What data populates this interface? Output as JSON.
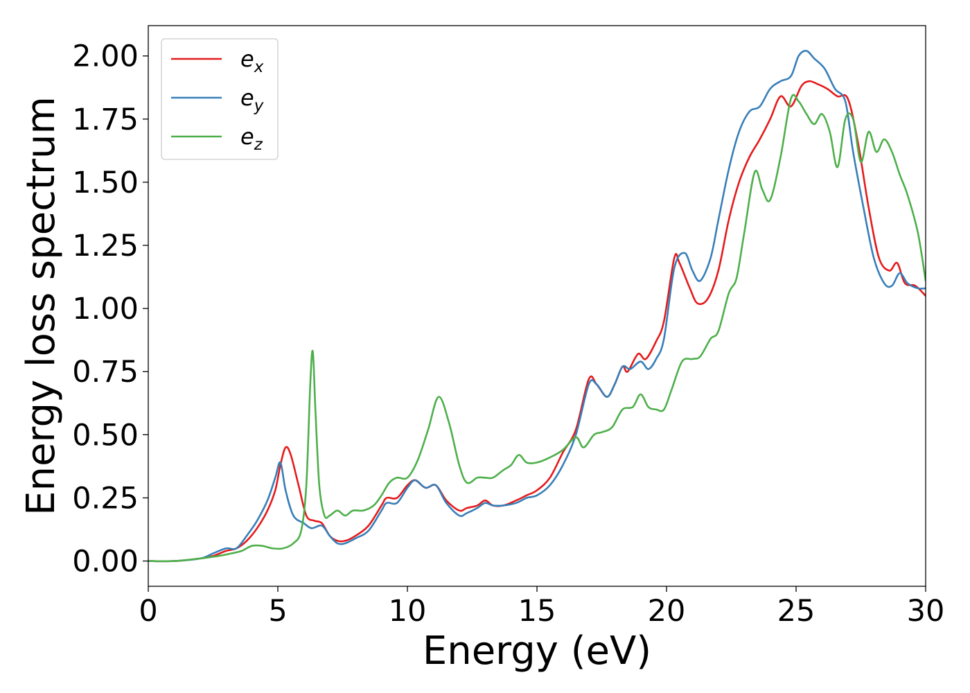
{
  "chart_data": {
    "type": "line",
    "xlabel": "Energy (eV)",
    "ylabel": "Energy loss spectrum",
    "xlim": [
      0,
      30
    ],
    "ylim": [
      -0.1,
      2.12
    ],
    "xticks": [
      0,
      5,
      10,
      15,
      20,
      25,
      30
    ],
    "yticks": [
      0.0,
      0.25,
      0.5,
      0.75,
      1.0,
      1.25,
      1.5,
      1.75,
      2.0
    ],
    "xtick_labels": [
      "0",
      "5",
      "10",
      "15",
      "20",
      "25",
      "30"
    ],
    "ytick_labels": [
      "0.00",
      "0.25",
      "0.50",
      "0.75",
      "1.00",
      "1.25",
      "1.50",
      "1.75",
      "2.00"
    ],
    "grid": false,
    "legend_position": "top-left",
    "series": [
      {
        "name": "e",
        "subscript": "x",
        "color": "#e41a1c",
        "x": [
          0,
          1,
          2,
          2.5,
          3,
          3.4,
          3.8,
          4.2,
          4.6,
          4.9,
          5.1,
          5.3,
          5.5,
          5.8,
          6.1,
          6.4,
          6.7,
          7.0,
          7.3,
          7.6,
          8.0,
          8.5,
          9.0,
          9.2,
          9.6,
          10.0,
          10.3,
          10.7,
          11.1,
          11.5,
          12.0,
          12.3,
          12.7,
          13.0,
          13.3,
          13.7,
          14.2,
          14.6,
          15.0,
          15.5,
          16.0,
          16.5,
          17.0,
          17.3,
          17.7,
          18.0,
          18.3,
          18.5,
          18.9,
          19.2,
          19.6,
          19.9,
          20.3,
          20.5,
          20.9,
          21.2,
          21.6,
          22.0,
          22.4,
          22.8,
          23.2,
          23.6,
          24.0,
          24.4,
          24.8,
          25.2,
          25.5,
          25.8,
          26.2,
          26.6,
          27.0,
          27.4,
          27.8,
          28.2,
          28.6,
          28.9,
          29.2,
          29.6,
          30.0
        ],
        "y": [
          0.0,
          0.0,
          0.01,
          0.02,
          0.04,
          0.05,
          0.08,
          0.13,
          0.2,
          0.28,
          0.38,
          0.45,
          0.42,
          0.3,
          0.18,
          0.16,
          0.15,
          0.1,
          0.08,
          0.08,
          0.1,
          0.14,
          0.22,
          0.25,
          0.25,
          0.3,
          0.32,
          0.29,
          0.3,
          0.24,
          0.2,
          0.21,
          0.22,
          0.24,
          0.22,
          0.22,
          0.24,
          0.26,
          0.28,
          0.33,
          0.43,
          0.52,
          0.72,
          0.7,
          0.65,
          0.7,
          0.77,
          0.75,
          0.82,
          0.8,
          0.87,
          0.95,
          1.2,
          1.18,
          1.08,
          1.02,
          1.04,
          1.15,
          1.35,
          1.5,
          1.6,
          1.67,
          1.75,
          1.84,
          1.8,
          1.88,
          1.9,
          1.89,
          1.87,
          1.84,
          1.83,
          1.65,
          1.4,
          1.2,
          1.15,
          1.18,
          1.1,
          1.09,
          1.05
        ]
      },
      {
        "name": "e",
        "subscript": "y",
        "color": "#377eb8",
        "x": [
          0,
          1,
          2,
          2.5,
          3,
          3.4,
          3.8,
          4.2,
          4.6,
          4.9,
          5.1,
          5.3,
          5.6,
          6.0,
          6.3,
          6.7,
          7.0,
          7.3,
          7.6,
          8.0,
          8.5,
          9.0,
          9.2,
          9.6,
          10.0,
          10.3,
          10.7,
          11.1,
          11.5,
          12.0,
          12.3,
          12.7,
          13.0,
          13.3,
          13.7,
          14.2,
          14.6,
          15.0,
          15.5,
          16.0,
          16.5,
          17.0,
          17.3,
          17.7,
          18.0,
          18.3,
          18.6,
          19.0,
          19.3,
          19.6,
          19.9,
          20.3,
          20.7,
          21.0,
          21.3,
          21.7,
          22.0,
          22.4,
          22.8,
          23.2,
          23.6,
          24.0,
          24.4,
          24.8,
          25.1,
          25.4,
          25.7,
          26.1,
          26.5,
          26.9,
          27.2,
          27.6,
          28.0,
          28.4,
          28.7,
          29.0,
          29.3,
          29.7,
          30.0
        ],
        "y": [
          0.0,
          0.0,
          0.01,
          0.03,
          0.05,
          0.05,
          0.1,
          0.16,
          0.24,
          0.33,
          0.39,
          0.28,
          0.18,
          0.15,
          0.13,
          0.14,
          0.1,
          0.07,
          0.07,
          0.09,
          0.12,
          0.2,
          0.23,
          0.23,
          0.29,
          0.32,
          0.29,
          0.3,
          0.23,
          0.18,
          0.19,
          0.21,
          0.23,
          0.22,
          0.22,
          0.23,
          0.25,
          0.26,
          0.3,
          0.38,
          0.5,
          0.7,
          0.7,
          0.65,
          0.7,
          0.77,
          0.76,
          0.79,
          0.76,
          0.8,
          0.88,
          1.16,
          1.22,
          1.15,
          1.11,
          1.2,
          1.35,
          1.55,
          1.7,
          1.78,
          1.8,
          1.87,
          1.9,
          1.92,
          2.0,
          2.02,
          1.99,
          1.95,
          1.87,
          1.82,
          1.62,
          1.4,
          1.2,
          1.1,
          1.09,
          1.14,
          1.1,
          1.08,
          1.08
        ]
      },
      {
        "name": "e",
        "subscript": "z",
        "color": "#4daf4a",
        "x": [
          0,
          1,
          2,
          2.7,
          3.2,
          3.6,
          4.0,
          4.4,
          4.8,
          5.2,
          5.6,
          5.9,
          6.1,
          6.25,
          6.35,
          6.45,
          6.6,
          6.8,
          7.0,
          7.3,
          7.6,
          7.9,
          8.3,
          8.7,
          9.0,
          9.3,
          9.6,
          10.0,
          10.4,
          10.8,
          11.2,
          11.6,
          12.0,
          12.3,
          12.7,
          13.0,
          13.3,
          13.7,
          14.0,
          14.3,
          14.6,
          15.0,
          15.5,
          16.0,
          16.5,
          16.8,
          17.2,
          17.5,
          17.9,
          18.3,
          18.7,
          19.0,
          19.3,
          19.6,
          19.9,
          20.2,
          20.6,
          21.0,
          21.3,
          21.7,
          22.0,
          22.4,
          22.7,
          23.0,
          23.4,
          23.7,
          24.0,
          24.4,
          24.8,
          25.1,
          25.4,
          25.7,
          26.0,
          26.3,
          26.6,
          26.9,
          27.2,
          27.5,
          27.8,
          28.1,
          28.4,
          28.7,
          29.0,
          29.3,
          29.7,
          30.0
        ],
        "y": [
          0.0,
          0.0,
          0.01,
          0.02,
          0.03,
          0.04,
          0.06,
          0.06,
          0.05,
          0.05,
          0.07,
          0.12,
          0.3,
          0.7,
          0.83,
          0.6,
          0.3,
          0.18,
          0.18,
          0.2,
          0.18,
          0.2,
          0.2,
          0.22,
          0.26,
          0.31,
          0.33,
          0.33,
          0.4,
          0.52,
          0.65,
          0.55,
          0.38,
          0.31,
          0.33,
          0.33,
          0.33,
          0.36,
          0.38,
          0.42,
          0.39,
          0.39,
          0.41,
          0.44,
          0.49,
          0.45,
          0.5,
          0.51,
          0.53,
          0.6,
          0.61,
          0.66,
          0.61,
          0.6,
          0.6,
          0.68,
          0.79,
          0.8,
          0.81,
          0.88,
          0.91,
          1.06,
          1.12,
          1.3,
          1.54,
          1.47,
          1.43,
          1.6,
          1.83,
          1.82,
          1.77,
          1.73,
          1.77,
          1.7,
          1.56,
          1.75,
          1.75,
          1.58,
          1.7,
          1.62,
          1.67,
          1.62,
          1.53,
          1.45,
          1.3,
          1.11
        ]
      }
    ]
  }
}
